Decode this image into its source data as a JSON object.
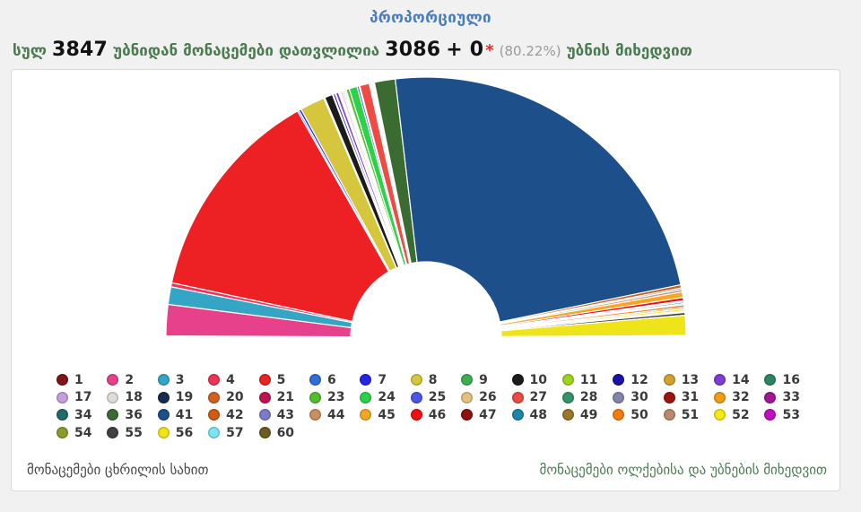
{
  "header": {
    "title": "პროპორციული"
  },
  "summary": {
    "prefix": "სულ",
    "total_precincts": "3847",
    "middle": "უბნიდან მონაცემები დათვლილია",
    "counted": "3086",
    "plus": "+ 0",
    "asterisk": "*",
    "percent": "(80.22%)",
    "suffix": "უბნის მიხედვით"
  },
  "links": {
    "table_view": "მონაცემები ცხრილის სახით",
    "by_districts": "მონაცემები ოლქებისა და უბნების მიხედვით"
  },
  "colors": {
    "title_blue": "#4a7dbb",
    "text_green": "#4b7b50",
    "numbers_black": "#121212",
    "percent_gray": "#9a9a9a",
    "asterisk_red": "#e02b20",
    "panel_border": "#d9d9d9",
    "page_bg": "#f1f1f2"
  },
  "chart_data": {
    "type": "pie",
    "variant": "half-donut",
    "title": "პროპორციული",
    "start_angle_deg": 180,
    "end_angle_deg": 0,
    "inner_radius_ratio": 0.29,
    "legend_position": "below",
    "note": "party ballot numbers; share of semicircle estimated from arc angles (%)",
    "segments": [
      {
        "label": "1",
        "value": 0.15,
        "color": "#7f1416"
      },
      {
        "label": "2",
        "value": 3.9,
        "color": "#e8418c"
      },
      {
        "label": "3",
        "value": 2.2,
        "color": "#35a5c6"
      },
      {
        "label": "4",
        "value": 0.5,
        "color": "#ee3355"
      },
      {
        "label": "5",
        "value": 27.0,
        "color": "#ed2024"
      },
      {
        "label": "6",
        "value": 0.2,
        "color": "#2e6fd8"
      },
      {
        "label": "7",
        "value": 0.3,
        "color": "#2424ee"
      },
      {
        "label": "8",
        "value": 3.1,
        "color": "#d5c63d"
      },
      {
        "label": "9",
        "value": 0.15,
        "color": "#3eae52"
      },
      {
        "label": "10",
        "value": 1.0,
        "color": "#1b1b1b"
      },
      {
        "label": "11",
        "value": 0.1,
        "color": "#9ed41f"
      },
      {
        "label": "12",
        "value": 0.25,
        "color": "#1a12a8"
      },
      {
        "label": "13",
        "value": 0.1,
        "color": "#d3a12f"
      },
      {
        "label": "14",
        "value": 0.35,
        "color": "#7c3fd3"
      },
      {
        "label": "16",
        "value": 0.1,
        "color": "#2b8464"
      },
      {
        "label": "17",
        "value": 0.15,
        "color": "#c79de0"
      },
      {
        "label": "18",
        "value": 0.3,
        "color": "#dfdcd7"
      },
      {
        "label": "19",
        "value": 0.15,
        "color": "#182a4e"
      },
      {
        "label": "20",
        "value": 0.15,
        "color": "#d2611f"
      },
      {
        "label": "21",
        "value": 0.15,
        "color": "#c01354"
      },
      {
        "label": "23",
        "value": 0.4,
        "color": "#4fc02c"
      },
      {
        "label": "24",
        "value": 1.0,
        "color": "#2bd249"
      },
      {
        "label": "25",
        "value": 0.25,
        "color": "#4b55e6"
      },
      {
        "label": "26",
        "value": 0.1,
        "color": "#e2c17e"
      },
      {
        "label": "27",
        "value": 1.2,
        "color": "#ef4a43"
      },
      {
        "label": "28",
        "value": 0.1,
        "color": "#31946b"
      },
      {
        "label": "30",
        "value": 0.1,
        "color": "#8285ad"
      },
      {
        "label": "31",
        "value": 0.1,
        "color": "#9c1410"
      },
      {
        "label": "32",
        "value": 0.15,
        "color": "#f09d13"
      },
      {
        "label": "33",
        "value": 0.1,
        "color": "#9e1896"
      },
      {
        "label": "34",
        "value": 0.1,
        "color": "#206b66"
      },
      {
        "label": "36",
        "value": 2.6,
        "color": "#3a6b31"
      },
      {
        "label": "41",
        "value": 47.6,
        "color": "#1d4f8a"
      },
      {
        "label": "42",
        "value": 0.4,
        "color": "#cd5c17"
      },
      {
        "label": "43",
        "value": 0.2,
        "color": "#7b7cc9"
      },
      {
        "label": "44",
        "value": 0.3,
        "color": "#c98f63"
      },
      {
        "label": "45",
        "value": 0.7,
        "color": "#f5a623"
      },
      {
        "label": "46",
        "value": 0.4,
        "color": "#f01010"
      },
      {
        "label": "47",
        "value": 0.15,
        "color": "#8c1111"
      },
      {
        "label": "48",
        "value": 0.2,
        "color": "#1b87a6"
      },
      {
        "label": "49",
        "value": 0.15,
        "color": "#9a762b"
      },
      {
        "label": "50",
        "value": 0.3,
        "color": "#f67d0c"
      },
      {
        "label": "51",
        "value": 0.2,
        "color": "#ba8a6f"
      },
      {
        "label": "52",
        "value": 0.25,
        "color": "#f5e813"
      },
      {
        "label": "53",
        "value": 0.1,
        "color": "#bd10bd"
      },
      {
        "label": "54",
        "value": 0.1,
        "color": "#8a9c2a"
      },
      {
        "label": "55",
        "value": 0.35,
        "color": "#414141"
      },
      {
        "label": "56",
        "value": 2.5,
        "color": "#efe41a"
      },
      {
        "label": "57",
        "value": 0.1,
        "color": "#7ce4f2"
      },
      {
        "label": "60",
        "value": 0.1,
        "color": "#6d5c20"
      }
    ]
  }
}
